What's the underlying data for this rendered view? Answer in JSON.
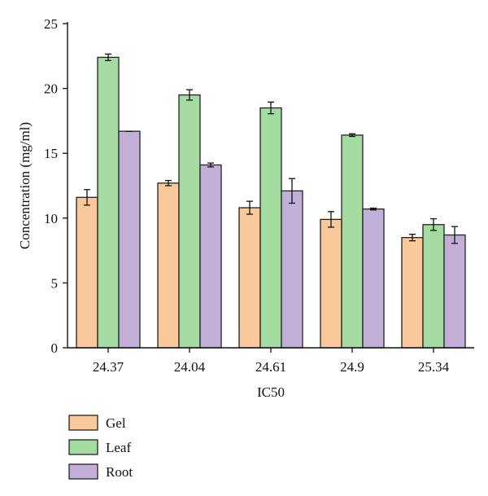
{
  "chart_data": {
    "type": "bar",
    "title": "",
    "xlabel": "IC50",
    "ylabel": "Concentration (mg/ml)",
    "categories": [
      "24.37",
      "24.04",
      "24.61",
      "24.9",
      "25.34"
    ],
    "ylim": [
      0,
      25
    ],
    "yticks": [
      "0",
      "5",
      "10",
      "15",
      "20",
      "25"
    ],
    "series": [
      {
        "name": "Gel",
        "color": "#f9c99b",
        "values": [
          11.6,
          12.7,
          10.8,
          9.9,
          8.5
        ],
        "errors": [
          0.6,
          0.2,
          0.5,
          0.6,
          0.25
        ]
      },
      {
        "name": "Leaf",
        "color": "#a3dba1",
        "values": [
          22.4,
          19.5,
          18.5,
          16.4,
          9.5
        ],
        "errors": [
          0.25,
          0.4,
          0.45,
          0.1,
          0.45
        ]
      },
      {
        "name": "Root",
        "color": "#c2afd8",
        "values": [
          16.7,
          14.1,
          12.1,
          10.7,
          8.7
        ],
        "errors": [
          0.0,
          0.15,
          0.95,
          0.07,
          0.65
        ]
      }
    ],
    "legend_position": "bottom-left",
    "grid": false
  }
}
